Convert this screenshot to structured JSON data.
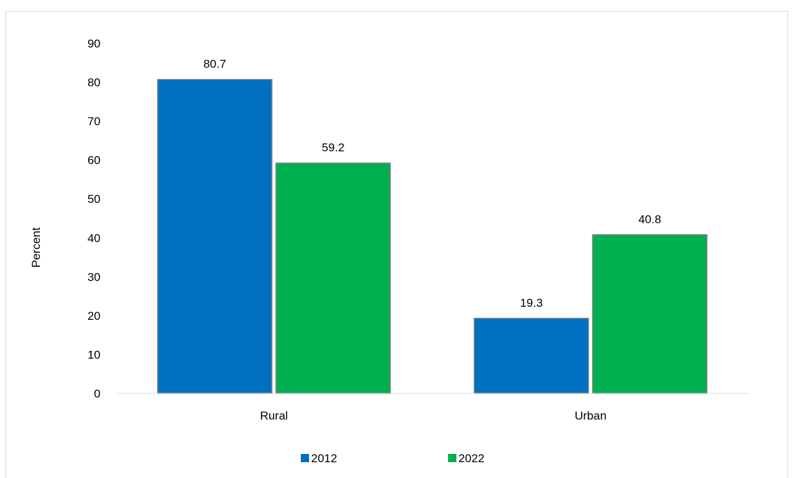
{
  "chart_data": {
    "type": "bar",
    "categories": [
      "Rural",
      "Urban"
    ],
    "series": [
      {
        "name": "2012",
        "values": [
          80.7,
          19.3
        ],
        "color": "#0070c0"
      },
      {
        "name": "2022",
        "values": [
          59.2,
          40.8
        ],
        "color": "#00b050"
      }
    ],
    "title": "",
    "xlabel": "",
    "ylabel": "Percent",
    "ylim": [
      0,
      90
    ],
    "yticks": [
      0,
      10,
      20,
      30,
      40,
      50,
      60,
      70,
      80,
      90
    ],
    "grid": false,
    "legend": "bottom"
  }
}
